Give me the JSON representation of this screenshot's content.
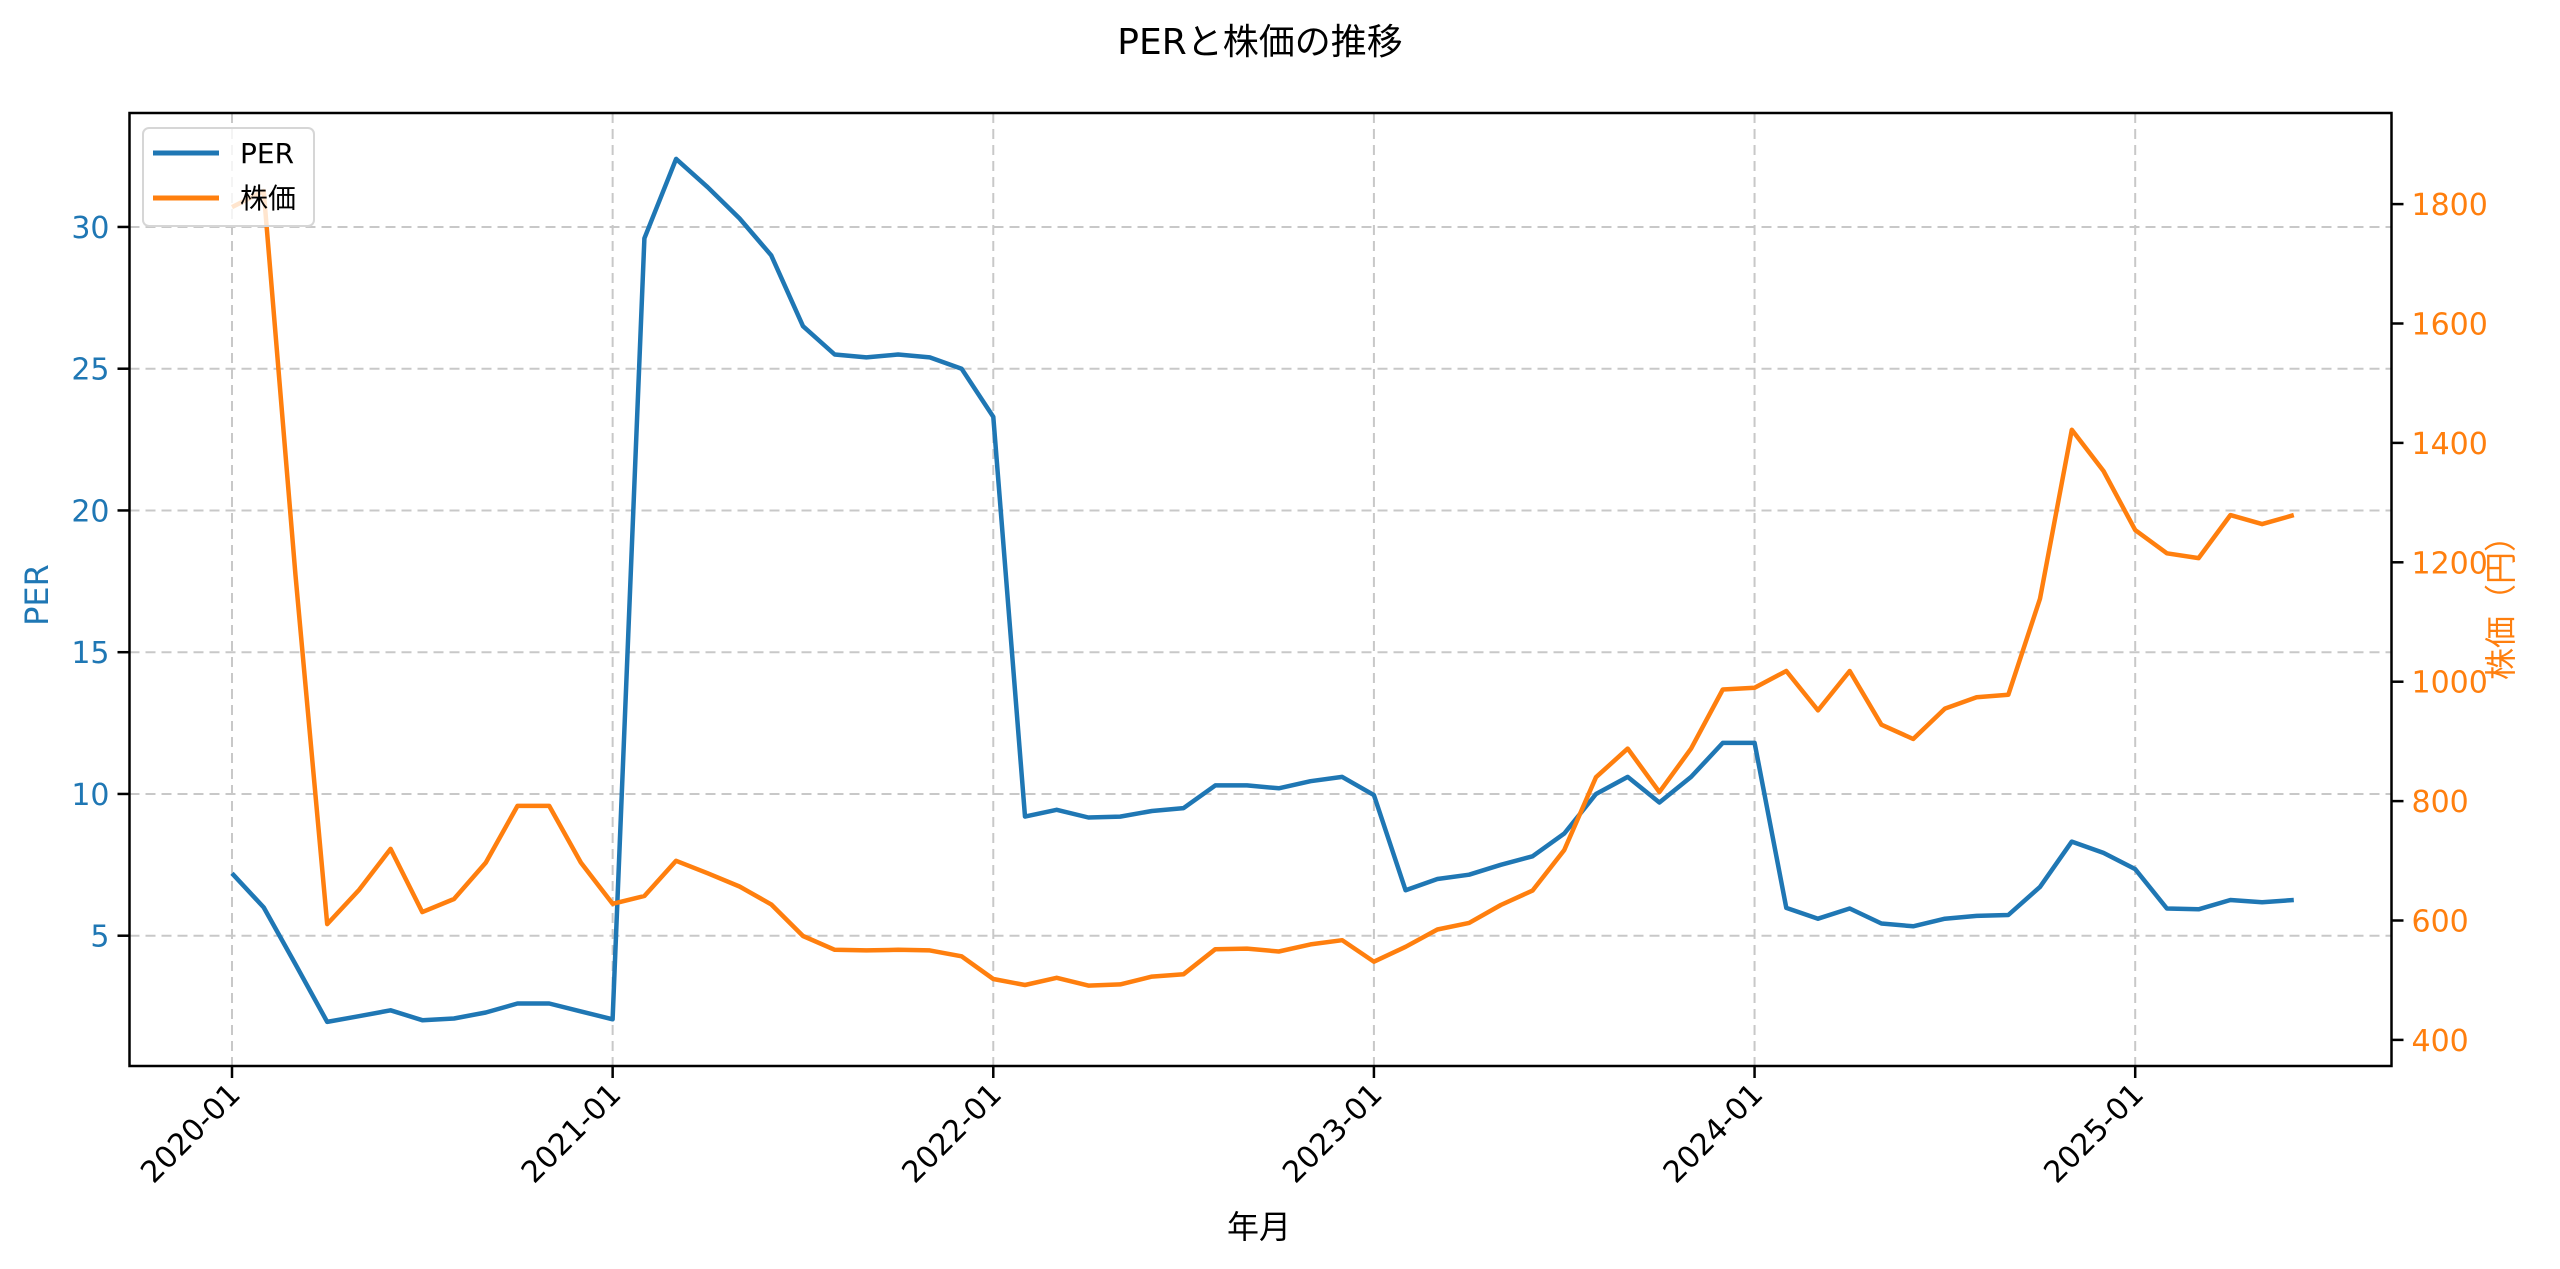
{
  "chart_data": {
    "type": "line",
    "title": "PERと株価の推移",
    "xlabel": "年月",
    "ylabel": "PER",
    "y2label": "株価（円）",
    "x": [
      "2020-01",
      "2020-02",
      "2020-03",
      "2020-04",
      "2020-05",
      "2020-06",
      "2020-07",
      "2020-08",
      "2020-09",
      "2020-10",
      "2020-11",
      "2020-12",
      "2021-01",
      "2021-02",
      "2021-03",
      "2021-04",
      "2021-05",
      "2021-06",
      "2021-07",
      "2021-08",
      "2021-09",
      "2021-10",
      "2021-11",
      "2021-12",
      "2022-01",
      "2022-02",
      "2022-03",
      "2022-04",
      "2022-05",
      "2022-06",
      "2022-07",
      "2022-08",
      "2022-09",
      "2022-10",
      "2022-11",
      "2022-12",
      "2023-01",
      "2023-02",
      "2023-03",
      "2023-04",
      "2023-05",
      "2023-06",
      "2023-07",
      "2023-08",
      "2023-09",
      "2023-10",
      "2023-11",
      "2023-12",
      "2024-01",
      "2024-02",
      "2024-03",
      "2024-04",
      "2024-05",
      "2024-06",
      "2024-07",
      "2024-08",
      "2024-09",
      "2024-10",
      "2024-11",
      "2024-12",
      "2025-01",
      "2025-02",
      "2025-03",
      "2025-04",
      "2025-05",
      "2025-06"
    ],
    "series": [
      {
        "name": "PER",
        "axis": "left",
        "color": "#1f77b4",
        "values": [
          7.2,
          6.0,
          4.0,
          1.96,
          2.16,
          2.37,
          2.02,
          2.08,
          2.29,
          2.61,
          2.61,
          2.33,
          2.05,
          29.6,
          32.4,
          31.4,
          30.3,
          29.0,
          26.5,
          25.5,
          25.4,
          25.5,
          25.4,
          25.0,
          23.3,
          9.2,
          9.44,
          9.17,
          9.2,
          9.4,
          9.5,
          10.3,
          10.3,
          10.2,
          10.45,
          10.6,
          9.96,
          6.6,
          7.0,
          7.15,
          7.5,
          7.8,
          8.6,
          10.0,
          10.6,
          9.7,
          10.6,
          11.8,
          11.8,
          5.98,
          5.6,
          5.96,
          5.43,
          5.33,
          5.6,
          5.7,
          5.73,
          6.72,
          8.32,
          7.92,
          7.35,
          5.96,
          5.93,
          6.26,
          6.18,
          6.26
        ]
      },
      {
        "name": "株価",
        "axis": "right",
        "color": "#ff7f0e",
        "values": [
          1795,
          1822,
          1180,
          594,
          651,
          720,
          614,
          636,
          697,
          792,
          792,
          697,
          628,
          641,
          700,
          679,
          657,
          627,
          574,
          551,
          550,
          551,
          550,
          540,
          502,
          492,
          504,
          491,
          493,
          506,
          510,
          552,
          553,
          548,
          560,
          567,
          531,
          556,
          585,
          596,
          626,
          650,
          718,
          840,
          888,
          815,
          888,
          987,
          990,
          1018,
          952,
          1018,
          928,
          904,
          955,
          974,
          978,
          1139,
          1422,
          1353,
          1254,
          1215,
          1207,
          1279,
          1264,
          1279
        ]
      }
    ],
    "xticks": [
      "2020-01",
      "2021-01",
      "2022-01",
      "2023-01",
      "2024-01",
      "2025-01"
    ],
    "yticks": [
      5,
      10,
      15,
      20,
      25,
      30
    ],
    "y2ticks": [
      400,
      600,
      800,
      1000,
      1200,
      1400,
      1600,
      1800
    ],
    "ylim": [
      0.4,
      33.8
    ],
    "y2lim": [
      355,
      1946
    ],
    "grid": true,
    "legend_position": "upper left"
  },
  "colors": {
    "per": "#1f77b4",
    "price": "#ff7f0e",
    "grid": "#c8c8c8",
    "frame": "#000000"
  },
  "legend": {
    "items": [
      {
        "label": "PER"
      },
      {
        "label": "株価"
      }
    ]
  }
}
